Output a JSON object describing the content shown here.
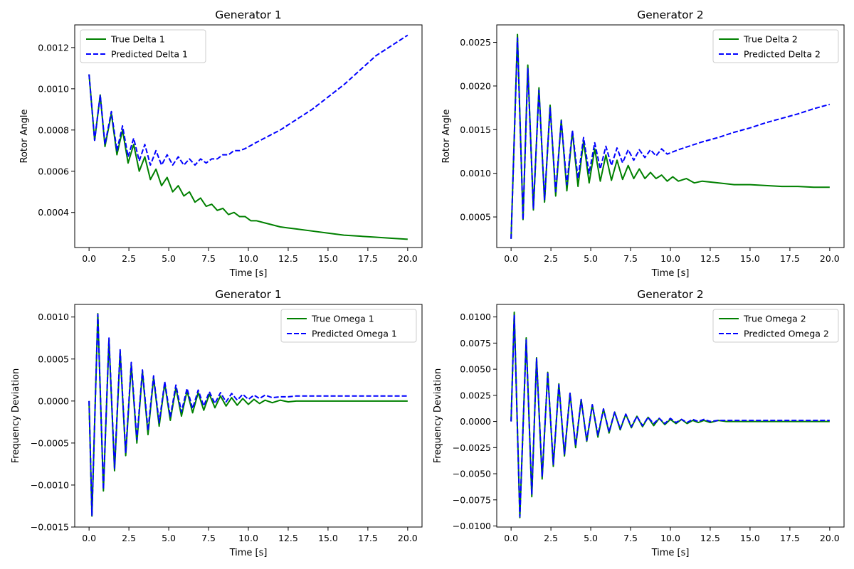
{
  "chart_data": [
    {
      "type": "line",
      "title": "Generator 1",
      "xlabel": "Time [s]",
      "ylabel": "Rotor Angle",
      "xlim": [
        -0.9,
        20.9
      ],
      "ylim": [
        0.00023,
        0.00131
      ],
      "xticks": [
        0,
        2.5,
        5,
        7.5,
        10,
        12.5,
        15,
        17.5,
        20
      ],
      "xtick_labels": [
        "0.0",
        "2.5",
        "5.0",
        "7.5",
        "10.0",
        "12.5",
        "15.0",
        "17.5",
        "20.0"
      ],
      "yticks": [
        0.0004,
        0.0006,
        0.0008,
        0.001,
        0.0012
      ],
      "ytick_labels": [
        "0.0004",
        "0.0006",
        "0.0008",
        "0.0010",
        "0.0012"
      ],
      "legend_position": "top-left",
      "grid": false,
      "series": [
        {
          "name": "True Delta 1",
          "color": "#008000",
          "style": "solid",
          "x": [
            0,
            0.35,
            0.7,
            1.0,
            1.4,
            1.75,
            2.1,
            2.45,
            2.8,
            3.15,
            3.5,
            3.85,
            4.2,
            4.55,
            4.9,
            5.25,
            5.6,
            5.95,
            6.3,
            6.65,
            7.0,
            7.35,
            7.7,
            8.05,
            8.4,
            8.75,
            9.1,
            9.45,
            9.8,
            10.15,
            10.5,
            11,
            11.5,
            12,
            12.5,
            13,
            14,
            15,
            16,
            17,
            18,
            19,
            20
          ],
          "y": [
            0.00107,
            0.00075,
            0.00097,
            0.00072,
            0.00088,
            0.00068,
            0.0008,
            0.00064,
            0.00073,
            0.0006,
            0.00067,
            0.00056,
            0.00061,
            0.00053,
            0.00057,
            0.0005,
            0.00053,
            0.00048,
            0.0005,
            0.00045,
            0.00047,
            0.00043,
            0.00044,
            0.00041,
            0.00042,
            0.00039,
            0.0004,
            0.00038,
            0.00038,
            0.00036,
            0.00036,
            0.00035,
            0.00034,
            0.00033,
            0.000325,
            0.00032,
            0.00031,
            0.0003,
            0.00029,
            0.000285,
            0.00028,
            0.000275,
            0.00027
          ]
        },
        {
          "name": "Predicted Delta 1",
          "color": "#0000ff",
          "style": "dashed",
          "x": [
            0,
            0.35,
            0.7,
            1.0,
            1.4,
            1.75,
            2.1,
            2.45,
            2.8,
            3.15,
            3.5,
            3.85,
            4.2,
            4.55,
            4.9,
            5.25,
            5.6,
            5.95,
            6.3,
            6.65,
            7.0,
            7.35,
            7.7,
            8.05,
            8.4,
            8.75,
            9.1,
            9.45,
            9.8,
            10.5,
            11,
            12,
            13,
            14,
            15,
            16,
            17,
            18,
            19,
            20
          ],
          "y": [
            0.00107,
            0.00075,
            0.00097,
            0.00073,
            0.00089,
            0.0007,
            0.00082,
            0.00067,
            0.00076,
            0.00065,
            0.00073,
            0.00063,
            0.0007,
            0.00063,
            0.00068,
            0.00063,
            0.00067,
            0.00063,
            0.00066,
            0.00063,
            0.00066,
            0.00064,
            0.00066,
            0.00066,
            0.00068,
            0.00068,
            0.0007,
            0.0007,
            0.00071,
            0.00074,
            0.00076,
            0.0008,
            0.00085,
            0.0009,
            0.00096,
            0.00102,
            0.00109,
            0.00116,
            0.00121,
            0.00126
          ]
        }
      ]
    },
    {
      "type": "line",
      "title": "Generator 2",
      "xlabel": "Time [s]",
      "ylabel": "Rotor Angle",
      "xlim": [
        -0.9,
        20.9
      ],
      "ylim": [
        0.00015,
        0.0027
      ],
      "xticks": [
        0,
        2.5,
        5,
        7.5,
        10,
        12.5,
        15,
        17.5,
        20
      ],
      "xtick_labels": [
        "0.0",
        "2.5",
        "5.0",
        "7.5",
        "10.0",
        "12.5",
        "15.0",
        "17.5",
        "20.0"
      ],
      "yticks": [
        0.0005,
        0.001,
        0.0015,
        0.002,
        0.0025
      ],
      "ytick_labels": [
        "0.0005",
        "0.0010",
        "0.0015",
        "0.0020",
        "0.0025"
      ],
      "legend_position": "top-right",
      "grid": false,
      "series": [
        {
          "name": "True Delta 2",
          "color": "#008000",
          "style": "solid",
          "x": [
            0,
            0.4,
            0.75,
            1.05,
            1.4,
            1.75,
            2.1,
            2.45,
            2.8,
            3.15,
            3.5,
            3.85,
            4.2,
            4.55,
            4.9,
            5.25,
            5.6,
            5.95,
            6.3,
            6.65,
            7.0,
            7.35,
            7.7,
            8.05,
            8.4,
            8.75,
            9.1,
            9.45,
            9.8,
            10.15,
            10.5,
            11,
            11.5,
            12,
            13,
            14,
            15,
            16,
            17,
            18,
            19,
            20
          ],
          "y": [
            0.00025,
            0.00259,
            0.00047,
            0.00224,
            0.00058,
            0.00198,
            0.00067,
            0.00178,
            0.00074,
            0.00161,
            0.0008,
            0.00148,
            0.00085,
            0.00137,
            0.00089,
            0.00128,
            0.00091,
            0.00121,
            0.00092,
            0.00115,
            0.00093,
            0.00109,
            0.00094,
            0.00105,
            0.00094,
            0.00101,
            0.00094,
            0.00098,
            0.00091,
            0.00096,
            0.00091,
            0.00094,
            0.00089,
            0.00091,
            0.00089,
            0.00087,
            0.00087,
            0.00086,
            0.00085,
            0.00085,
            0.00084,
            0.00084
          ]
        },
        {
          "name": "Predicted Delta 2",
          "color": "#0000ff",
          "style": "dashed",
          "x": [
            0,
            0.4,
            0.75,
            1.05,
            1.4,
            1.75,
            2.1,
            2.45,
            2.8,
            3.15,
            3.5,
            3.85,
            4.2,
            4.55,
            4.9,
            5.25,
            5.6,
            5.95,
            6.3,
            6.65,
            7.0,
            7.35,
            7.7,
            8.05,
            8.4,
            8.75,
            9.1,
            9.45,
            9.8,
            10.5,
            11,
            12,
            13,
            14,
            15,
            16,
            17,
            18,
            19,
            20
          ],
          "y": [
            0.00025,
            0.00255,
            0.00047,
            0.0022,
            0.0006,
            0.00195,
            0.0007,
            0.00175,
            0.00079,
            0.0016,
            0.00087,
            0.00149,
            0.00094,
            0.00141,
            0.001,
            0.00135,
            0.00105,
            0.00131,
            0.00109,
            0.00129,
            0.00112,
            0.00127,
            0.00115,
            0.00127,
            0.00118,
            0.00127,
            0.0012,
            0.00128,
            0.00122,
            0.00127,
            0.0013,
            0.00136,
            0.00141,
            0.00147,
            0.00152,
            0.00158,
            0.00163,
            0.00168,
            0.00174,
            0.00179
          ]
        }
      ]
    },
    {
      "type": "line",
      "title": "Generator 1",
      "xlabel": "Time [s]",
      "ylabel": "Frequency Deviation",
      "xlim": [
        -0.9,
        20.9
      ],
      "ylim": [
        -0.0015,
        0.00115
      ],
      "xticks": [
        0,
        2.5,
        5,
        7.5,
        10,
        12.5,
        15,
        17.5,
        20
      ],
      "xtick_labels": [
        "0.0",
        "2.5",
        "5.0",
        "7.5",
        "10.0",
        "12.5",
        "15.0",
        "17.5",
        "20.0"
      ],
      "yticks": [
        -0.0015,
        -0.001,
        -0.0005,
        0.0,
        0.0005,
        0.001
      ],
      "ytick_labels": [
        "−0.0015",
        "−0.0010",
        "−0.0005",
        "0.0000",
        "0.0005",
        "0.0010"
      ],
      "legend_position": "top-right",
      "grid": false,
      "series": [
        {
          "name": "True Omega 1",
          "color": "#008000",
          "style": "solid",
          "x": [
            0,
            0.18,
            0.55,
            0.9,
            1.25,
            1.6,
            1.95,
            2.3,
            2.65,
            3.0,
            3.35,
            3.7,
            4.05,
            4.4,
            4.75,
            5.1,
            5.45,
            5.8,
            6.15,
            6.5,
            6.85,
            7.2,
            7.55,
            7.9,
            8.25,
            8.6,
            8.95,
            9.3,
            9.65,
            10.0,
            10.35,
            10.7,
            11.05,
            11.5,
            12,
            12.5,
            13,
            14,
            15,
            16,
            17,
            18,
            19,
            20
          ],
          "y": [
            0,
            -0.00137,
            0.00104,
            -0.00107,
            0.00073,
            -0.00083,
            0.00059,
            -0.00065,
            0.00043,
            -0.0005,
            0.00035,
            -0.0004,
            0.00028,
            -0.0003,
            0.00021,
            -0.00023,
            0.00016,
            -0.00018,
            0.00012,
            -0.00014,
            0.0001,
            -0.00011,
            8e-05,
            -8e-05,
            6e-05,
            -6e-05,
            4e-05,
            -5e-05,
            3e-05,
            -4e-05,
            2e-05,
            -3e-05,
            1e-05,
            -2e-05,
            1e-05,
            -1e-05,
            0,
            0,
            0,
            0,
            0,
            0,
            0,
            0
          ]
        },
        {
          "name": "Predicted Omega 1",
          "color": "#0000ff",
          "style": "dashed",
          "x": [
            0,
            0.18,
            0.55,
            0.9,
            1.25,
            1.6,
            1.95,
            2.3,
            2.65,
            3.0,
            3.35,
            3.7,
            4.05,
            4.4,
            4.75,
            5.1,
            5.45,
            5.8,
            6.15,
            6.5,
            6.85,
            7.2,
            7.55,
            7.9,
            8.25,
            8.6,
            8.95,
            9.3,
            9.65,
            10.0,
            10.35,
            10.7,
            11.05,
            11.5,
            12,
            12.5,
            13,
            14,
            15,
            16,
            17,
            18,
            19,
            20
          ],
          "y": [
            0,
            -0.00136,
            0.00103,
            -0.00105,
            0.00075,
            -0.0008,
            0.00061,
            -0.00062,
            0.00046,
            -0.00046,
            0.00037,
            -0.00035,
            0.0003,
            -0.00026,
            0.00023,
            -0.00019,
            0.00019,
            -0.00013,
            0.00015,
            -9e-05,
            0.00013,
            -6e-05,
            0.00011,
            -3e-05,
            0.0001,
            -1e-05,
            9e-05,
            1e-05,
            8e-05,
            2e-05,
            7e-05,
            3e-05,
            7e-05,
            4e-05,
            5e-05,
            5e-05,
            6e-05,
            6e-05,
            6e-05,
            6e-05,
            6e-05,
            6e-05,
            6e-05,
            6e-05
          ]
        }
      ]
    },
    {
      "type": "line",
      "title": "Generator 2",
      "xlabel": "Time [s]",
      "ylabel": "Frequency Deviation",
      "xlim": [
        -0.9,
        20.9
      ],
      "ylim": [
        -0.0101,
        0.0112
      ],
      "xticks": [
        0,
        2.5,
        5,
        7.5,
        10,
        12.5,
        15,
        17.5,
        20
      ],
      "xtick_labels": [
        "0.0",
        "2.5",
        "5.0",
        "7.5",
        "10.0",
        "12.5",
        "15.0",
        "17.5",
        "20.0"
      ],
      "yticks": [
        -0.01,
        -0.0075,
        -0.005,
        -0.0025,
        0.0,
        0.0025,
        0.005,
        0.0075,
        0.01
      ],
      "ytick_labels": [
        "−0.0100",
        "−0.0075",
        "−0.0050",
        "−0.0025",
        "0.0000",
        "0.0025",
        "0.0050",
        "0.0075",
        "0.0100"
      ],
      "legend_position": "top-right",
      "grid": false,
      "series": [
        {
          "name": "True Omega 2",
          "color": "#008000",
          "style": "solid",
          "x": [
            0,
            0.2,
            0.55,
            0.95,
            1.3,
            1.6,
            1.95,
            2.3,
            2.65,
            3.0,
            3.35,
            3.7,
            4.05,
            4.4,
            4.75,
            5.1,
            5.45,
            5.8,
            6.15,
            6.5,
            6.85,
            7.2,
            7.55,
            7.9,
            8.25,
            8.6,
            8.95,
            9.3,
            9.65,
            10.0,
            10.35,
            10.7,
            11.05,
            11.4,
            11.75,
            12.1,
            12.5,
            13,
            13.5,
            14,
            15,
            16,
            17,
            18,
            19,
            20
          ],
          "y": [
            0,
            0.01045,
            -0.0092,
            0.008,
            -0.0072,
            0.0061,
            -0.0055,
            0.0047,
            -0.0043,
            0.0036,
            -0.0033,
            0.0027,
            -0.0025,
            0.0021,
            -0.0019,
            0.0016,
            -0.0015,
            0.0012,
            -0.0011,
            0.0009,
            -0.0008,
            0.0007,
            -0.0006,
            0.0005,
            -0.0005,
            0.0004,
            -0.0004,
            0.0003,
            -0.0003,
            0.0002,
            -0.0002,
            0.0002,
            -0.0002,
            0.0001,
            -0.0001,
            0.0001,
            -0.0001,
            0.0001,
            0,
            0,
            0,
            0,
            0,
            0,
            0,
            0
          ]
        },
        {
          "name": "Predicted Omega 2",
          "color": "#0000ff",
          "style": "dashed",
          "x": [
            0,
            0.2,
            0.55,
            0.95,
            1.3,
            1.6,
            1.95,
            2.3,
            2.65,
            3.0,
            3.35,
            3.7,
            4.05,
            4.4,
            4.75,
            5.1,
            5.45,
            5.8,
            6.15,
            6.5,
            6.85,
            7.2,
            7.55,
            7.9,
            8.25,
            8.6,
            8.95,
            9.3,
            9.65,
            10.0,
            10.35,
            10.7,
            11.05,
            11.4,
            11.75,
            12.1,
            12.5,
            13,
            13.5,
            14,
            15,
            16,
            17,
            18,
            19,
            20
          ],
          "y": [
            0,
            0.0102,
            -0.0091,
            0.0078,
            -0.007,
            0.006,
            -0.0053,
            0.0046,
            -0.0041,
            0.0035,
            -0.0031,
            0.0027,
            -0.0023,
            0.0021,
            -0.0018,
            0.0016,
            -0.0013,
            0.0012,
            -0.001,
            0.0009,
            -0.0007,
            0.0007,
            -0.0005,
            0.0005,
            -0.0004,
            0.0004,
            -0.0002,
            0.0003,
            -0.0002,
            0.0003,
            -0.0001,
            0.0002,
            -0.0001,
            0.0002,
            0,
            0.0002,
            0,
            0.0001,
            0.0001,
            0.0001,
            0.0001,
            0.0001,
            0.0001,
            0.0001,
            0.0001,
            0.0001
          ]
        }
      ]
    }
  ]
}
